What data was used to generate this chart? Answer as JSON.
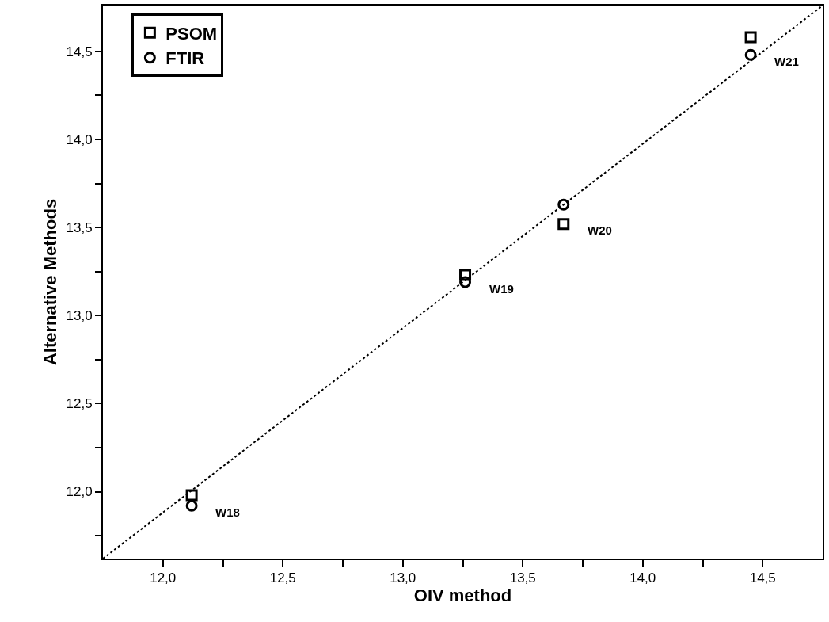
{
  "chart_data": {
    "type": "scatter",
    "xlabel": "OIV method",
    "ylabel": "Alternative Methods",
    "xlim": [
      11.75,
      14.75
    ],
    "ylim": [
      11.62,
      14.76
    ],
    "xticks": [
      {
        "value": 12.0,
        "label": "12,0"
      },
      {
        "value": 12.25,
        "label": null
      },
      {
        "value": 12.5,
        "label": "12,5"
      },
      {
        "value": 12.75,
        "label": null
      },
      {
        "value": 13.0,
        "label": "13,0"
      },
      {
        "value": 13.25,
        "label": null
      },
      {
        "value": 13.5,
        "label": "13,5"
      },
      {
        "value": 13.75,
        "label": null
      },
      {
        "value": 14.0,
        "label": "14,0"
      },
      {
        "value": 14.25,
        "label": null
      },
      {
        "value": 14.5,
        "label": "14,5"
      }
    ],
    "yticks": [
      {
        "value": 11.75,
        "label": null
      },
      {
        "value": 12.0,
        "label": "12,0"
      },
      {
        "value": 12.25,
        "label": null
      },
      {
        "value": 12.5,
        "label": "12,5"
      },
      {
        "value": 12.75,
        "label": null
      },
      {
        "value": 13.0,
        "label": "13,0"
      },
      {
        "value": 13.25,
        "label": null
      },
      {
        "value": 13.5,
        "label": "13,5"
      },
      {
        "value": 13.75,
        "label": null
      },
      {
        "value": 14.0,
        "label": "14,0"
      },
      {
        "value": 14.25,
        "label": null
      },
      {
        "value": 14.5,
        "label": "14,5"
      }
    ],
    "x": [
      12.12,
      13.26,
      13.67,
      14.45
    ],
    "series": [
      {
        "name": "PSOM",
        "color": "#000000",
        "marker": "square",
        "values": [
          11.98,
          13.23,
          13.52,
          14.58
        ]
      },
      {
        "name": "FTIR",
        "color": "#000000",
        "marker": "circle",
        "values": [
          11.92,
          13.19,
          13.63,
          14.48
        ]
      },
      {
        "type": "line",
        "color": "#000000",
        "line_style": "dotted",
        "marker": "none",
        "x": [
          11.75,
          14.75
        ],
        "values": [
          11.62,
          14.76
        ]
      }
    ],
    "annotations": [
      {
        "text": "W18",
        "x": 12.12,
        "y": 11.92
      },
      {
        "text": "W19",
        "x": 13.26,
        "y": 13.19
      },
      {
        "text": "W20",
        "x": 13.67,
        "y": 13.52
      },
      {
        "text": "W21",
        "x": 14.45,
        "y": 14.48
      }
    ],
    "legend": "top left"
  }
}
